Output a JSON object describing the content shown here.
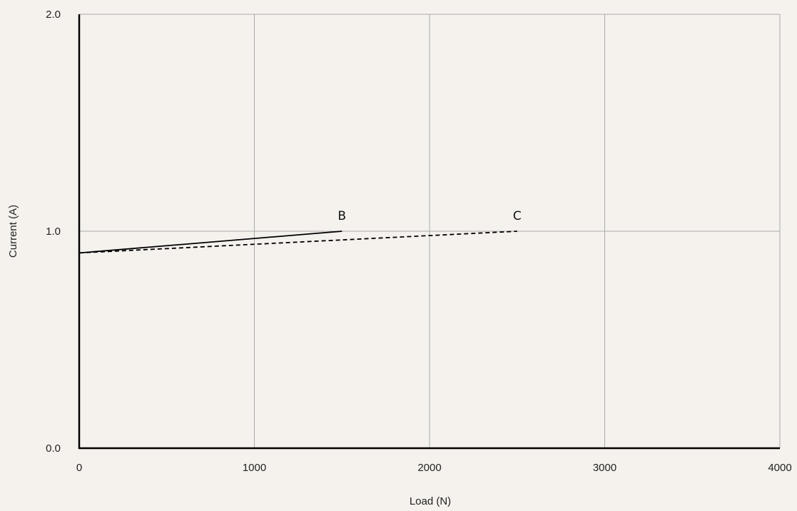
{
  "chart_data": {
    "type": "line",
    "xlabel": "Load (N)",
    "ylabel": "Current (A)",
    "xlim": [
      0,
      4000
    ],
    "ylim": [
      0,
      2.0
    ],
    "x_ticks": [
      0,
      1000,
      2000,
      3000,
      4000
    ],
    "x_tick_labels": [
      "0",
      "1000",
      "2000",
      "3000",
      "4000"
    ],
    "y_ticks": [
      0,
      1.0,
      2.0
    ],
    "y_tick_labels": [
      "0.0",
      "1.0",
      "2.0"
    ],
    "grid": true,
    "series": [
      {
        "name": "B",
        "style": "solid",
        "color": "#000000",
        "x": [
          0,
          1500
        ],
        "y": [
          0.9,
          1.0
        ]
      },
      {
        "name": "C",
        "style": "dashed",
        "color": "#000000",
        "x": [
          0,
          2500
        ],
        "y": [
          0.9,
          1.0
        ]
      }
    ],
    "colors": {
      "background": "#f5f2ee",
      "grid": "#a9a9a9",
      "axis": "#000000"
    }
  }
}
